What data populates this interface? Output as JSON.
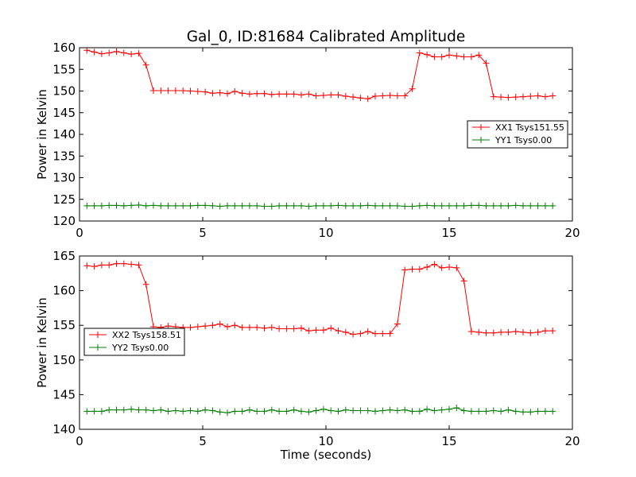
{
  "chart_data": [
    {
      "type": "line",
      "title": "Gal_0, ID:81684 Calibrated Amplitude",
      "xlabel": "",
      "ylabel": "Power in Kelvin",
      "xlim": [
        0,
        20
      ],
      "ylim": [
        120,
        160
      ],
      "xticks": [
        "0",
        "5",
        "10",
        "15",
        "20"
      ],
      "yticks": [
        "120",
        "125",
        "130",
        "135",
        "140",
        "145",
        "150",
        "155",
        "160"
      ],
      "legend_position": "center-right",
      "x": [
        0.3,
        0.6,
        0.9,
        1.2,
        1.5,
        1.8,
        2.1,
        2.4,
        2.7,
        3.0,
        3.3,
        3.6,
        3.9,
        4.2,
        4.5,
        4.8,
        5.1,
        5.4,
        5.7,
        6.0,
        6.3,
        6.6,
        6.9,
        7.2,
        7.5,
        7.8,
        8.1,
        8.4,
        8.7,
        9.0,
        9.3,
        9.6,
        9.9,
        10.2,
        10.5,
        10.8,
        11.1,
        11.4,
        11.7,
        12.0,
        12.3,
        12.6,
        12.9,
        13.2,
        13.5,
        13.8,
        14.1,
        14.4,
        14.7,
        15.0,
        15.3,
        15.6,
        15.9,
        16.2,
        16.5,
        16.8,
        17.1,
        17.4,
        17.7,
        18.0,
        18.3,
        18.6,
        18.9,
        19.2
      ],
      "series": [
        {
          "name": "XX1 Tsys151.55",
          "color": "#ff0000",
          "values": [
            159.4,
            159.0,
            158.6,
            158.8,
            159.1,
            158.8,
            158.5,
            158.7,
            156.0,
            150.1,
            150.1,
            150.1,
            150.1,
            150.1,
            150.0,
            149.9,
            149.8,
            149.5,
            149.6,
            149.4,
            149.9,
            149.5,
            149.3,
            149.4,
            149.4,
            149.2,
            149.3,
            149.3,
            149.3,
            149.1,
            149.3,
            148.9,
            149.0,
            149.1,
            149.1,
            148.8,
            148.6,
            148.4,
            148.2,
            148.8,
            148.9,
            149.0,
            148.9,
            148.9,
            150.5,
            158.8,
            158.4,
            157.9,
            157.9,
            158.3,
            158.1,
            157.9,
            157.9,
            158.3,
            156.4,
            148.7,
            148.6,
            148.5,
            148.6,
            148.7,
            148.8,
            148.9,
            148.7,
            148.9
          ]
        },
        {
          "name": "YY1 Tsys0.00",
          "color": "#008000",
          "values": [
            123.5,
            123.5,
            123.5,
            123.6,
            123.6,
            123.5,
            123.6,
            123.7,
            123.5,
            123.6,
            123.5,
            123.5,
            123.5,
            123.5,
            123.5,
            123.6,
            123.6,
            123.5,
            123.4,
            123.5,
            123.5,
            123.5,
            123.5,
            123.5,
            123.4,
            123.4,
            123.5,
            123.5,
            123.5,
            123.5,
            123.4,
            123.5,
            123.5,
            123.5,
            123.6,
            123.5,
            123.5,
            123.5,
            123.6,
            123.5,
            123.5,
            123.5,
            123.5,
            123.4,
            123.4,
            123.5,
            123.6,
            123.5,
            123.5,
            123.5,
            123.5,
            123.5,
            123.6,
            123.6,
            123.5,
            123.5,
            123.5,
            123.5,
            123.6,
            123.5,
            123.5,
            123.5,
            123.5,
            123.5
          ]
        }
      ]
    },
    {
      "type": "line",
      "title": "",
      "xlabel": "Time (seconds)",
      "ylabel": "Power in Kelvin",
      "xlim": [
        0,
        20
      ],
      "ylim": [
        140,
        165
      ],
      "xticks": [
        "0",
        "5",
        "10",
        "15",
        "20"
      ],
      "yticks": [
        "140",
        "145",
        "150",
        "155",
        "160",
        "165"
      ],
      "legend_position": "center-left",
      "x": [
        0.3,
        0.6,
        0.9,
        1.2,
        1.5,
        1.8,
        2.1,
        2.4,
        2.7,
        3.0,
        3.3,
        3.6,
        3.9,
        4.2,
        4.5,
        4.8,
        5.1,
        5.4,
        5.7,
        6.0,
        6.3,
        6.6,
        6.9,
        7.2,
        7.5,
        7.8,
        8.1,
        8.4,
        8.7,
        9.0,
        9.3,
        9.6,
        9.9,
        10.2,
        10.5,
        10.8,
        11.1,
        11.4,
        11.7,
        12.0,
        12.3,
        12.6,
        12.9,
        13.2,
        13.5,
        13.8,
        14.1,
        14.4,
        14.7,
        15.0,
        15.3,
        15.6,
        15.9,
        16.2,
        16.5,
        16.8,
        17.1,
        17.4,
        17.7,
        18.0,
        18.3,
        18.6,
        18.9,
        19.2
      ],
      "series": [
        {
          "name": "XX2 Tsys158.51",
          "color": "#ff0000",
          "values": [
            163.6,
            163.5,
            163.7,
            163.7,
            163.9,
            163.9,
            163.8,
            163.7,
            160.9,
            154.8,
            154.7,
            154.9,
            154.8,
            154.7,
            154.7,
            154.8,
            154.9,
            155.0,
            155.2,
            154.8,
            155.0,
            154.7,
            154.7,
            154.7,
            154.6,
            154.7,
            154.5,
            154.5,
            154.5,
            154.6,
            154.2,
            154.3,
            154.3,
            154.6,
            154.2,
            154.0,
            153.7,
            153.8,
            154.1,
            153.8,
            153.8,
            153.8,
            155.2,
            163.0,
            163.1,
            163.1,
            163.4,
            163.8,
            163.3,
            163.4,
            163.3,
            161.4,
            154.1,
            154.0,
            153.9,
            153.9,
            154.0,
            154.0,
            154.1,
            154.0,
            153.9,
            154.0,
            154.2,
            154.2
          ]
        },
        {
          "name": "YY2 Tsys0.00",
          "color": "#008000",
          "values": [
            142.6,
            142.6,
            142.6,
            142.8,
            142.8,
            142.8,
            142.9,
            142.8,
            142.8,
            142.7,
            142.8,
            142.6,
            142.7,
            142.6,
            142.7,
            142.6,
            142.8,
            142.7,
            142.5,
            142.4,
            142.6,
            142.6,
            142.8,
            142.6,
            142.6,
            142.8,
            142.6,
            142.6,
            142.8,
            142.6,
            142.5,
            142.7,
            142.9,
            142.7,
            142.6,
            142.8,
            142.7,
            142.7,
            142.7,
            142.6,
            142.7,
            142.8,
            142.7,
            142.8,
            142.6,
            142.6,
            142.9,
            142.7,
            142.8,
            142.9,
            143.1,
            142.7,
            142.6,
            142.6,
            142.6,
            142.7,
            142.6,
            142.8,
            142.6,
            142.5,
            142.5,
            142.6,
            142.6,
            142.6
          ]
        }
      ]
    }
  ]
}
